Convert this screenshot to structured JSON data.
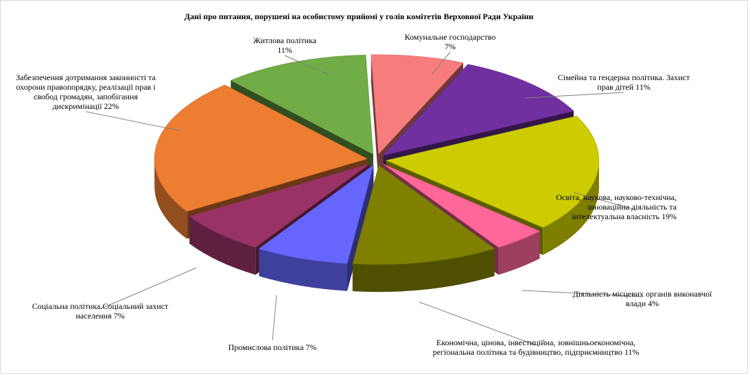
{
  "chart_data": {
    "type": "pie",
    "title": "Дані про питання, порушені на особистому прийомі у голів комітетів Верховної Ради України",
    "slices": [
      {
        "lines": [
          "Комунальне господарство",
          "7%"
        ],
        "value": 7,
        "color": "#f77d7d"
      },
      {
        "lines": [
          "Сімейна та гендерна політика. Захист",
          "прав дітей 11%"
        ],
        "value": 11,
        "color": "#7030a0"
      },
      {
        "lines": [
          "Освіта, наукова, науково-технічна,",
          "інноваційна діяльність та",
          "інтелектуальна власність 19%"
        ],
        "value": 19,
        "color": "#cccc00"
      },
      {
        "lines": [
          "Діяльність місцевих органів виконавчої",
          "влади 4%"
        ],
        "value": 4,
        "color": "#ff6699"
      },
      {
        "lines": [
          "Економічна, цінова, інвестиційна, зовнішньоекономічна,",
          "регіональна політика та будівництво, підприємництво 11%"
        ],
        "value": 11,
        "color": "#808000"
      },
      {
        "lines": [
          "Промислова політика 7%"
        ],
        "value": 7,
        "color": "#6666ff"
      },
      {
        "lines": [
          "Соціальна політика.Соціальний захист",
          "населення 7%"
        ],
        "value": 7,
        "color": "#993366"
      },
      {
        "lines": [
          "Забезпечення дотримання законності та",
          "охорони правопорядку, реалізації прав і",
          "свобод громадян, запобігання",
          "дискримінації 22%"
        ],
        "value": 22,
        "color": "#ed7d31"
      },
      {
        "lines": [
          "Житлова політика",
          "11%"
        ],
        "value": 11,
        "color": "#70ad47"
      }
    ]
  }
}
